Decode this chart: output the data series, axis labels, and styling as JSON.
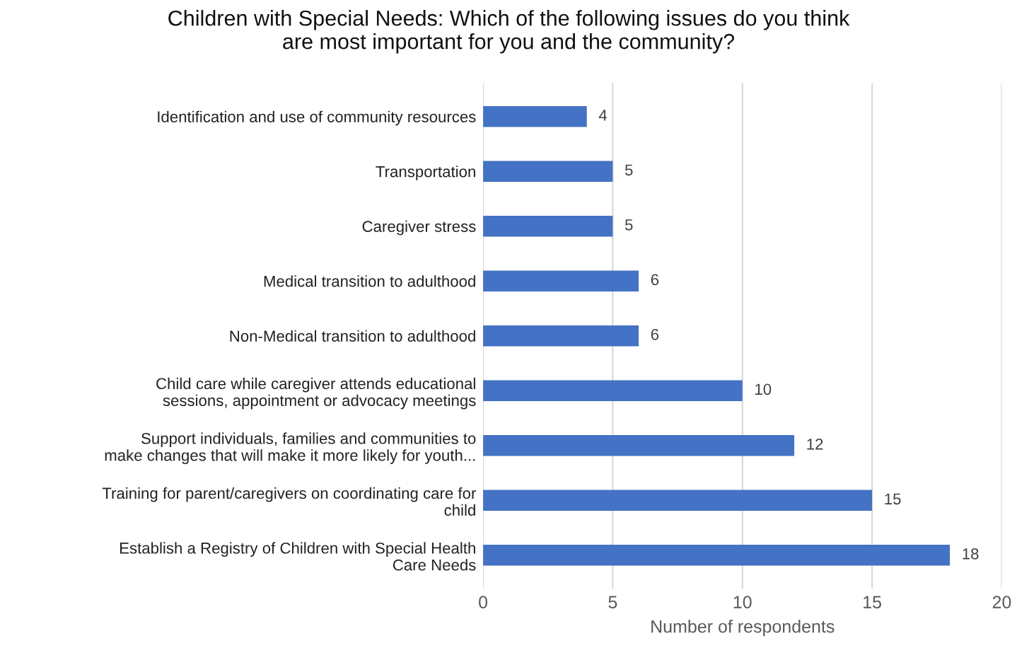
{
  "chart_data": {
    "type": "bar",
    "orientation": "horizontal",
    "title": "Children with Special Needs: Which of the following issues do you think\nare most important for you and the community?",
    "xlabel": "Number of respondents",
    "categories": [
      "Identification and use of community resources",
      "Transportation",
      "Caregiver stress",
      "Medical transition to adulthood",
      "Non-Medical transition to adulthood",
      "Child care while caregiver attends educational\nsessions, appointment or advocacy meetings",
      "Support individuals, families and communities to\nmake changes that will make it more likely for youth...",
      "Training for parent/caregivers on coordinating care for\nchild",
      "Establish a Registry of Children with Special Health\nCare Needs"
    ],
    "values": [
      4,
      5,
      5,
      6,
      6,
      10,
      12,
      15,
      18
    ],
    "color": "#4472c4",
    "xlim": [
      0,
      20
    ],
    "xticks": [
      0,
      5,
      10,
      15,
      20
    ],
    "grid": "x",
    "data_labels": true
  }
}
